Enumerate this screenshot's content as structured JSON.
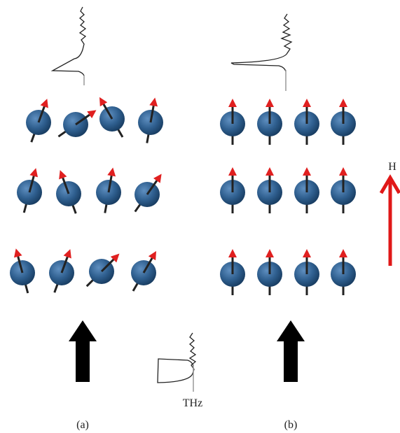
{
  "labels": {
    "field": "H",
    "source": "THz",
    "panel_a": "(a)",
    "panel_b": "(b)"
  }
}
